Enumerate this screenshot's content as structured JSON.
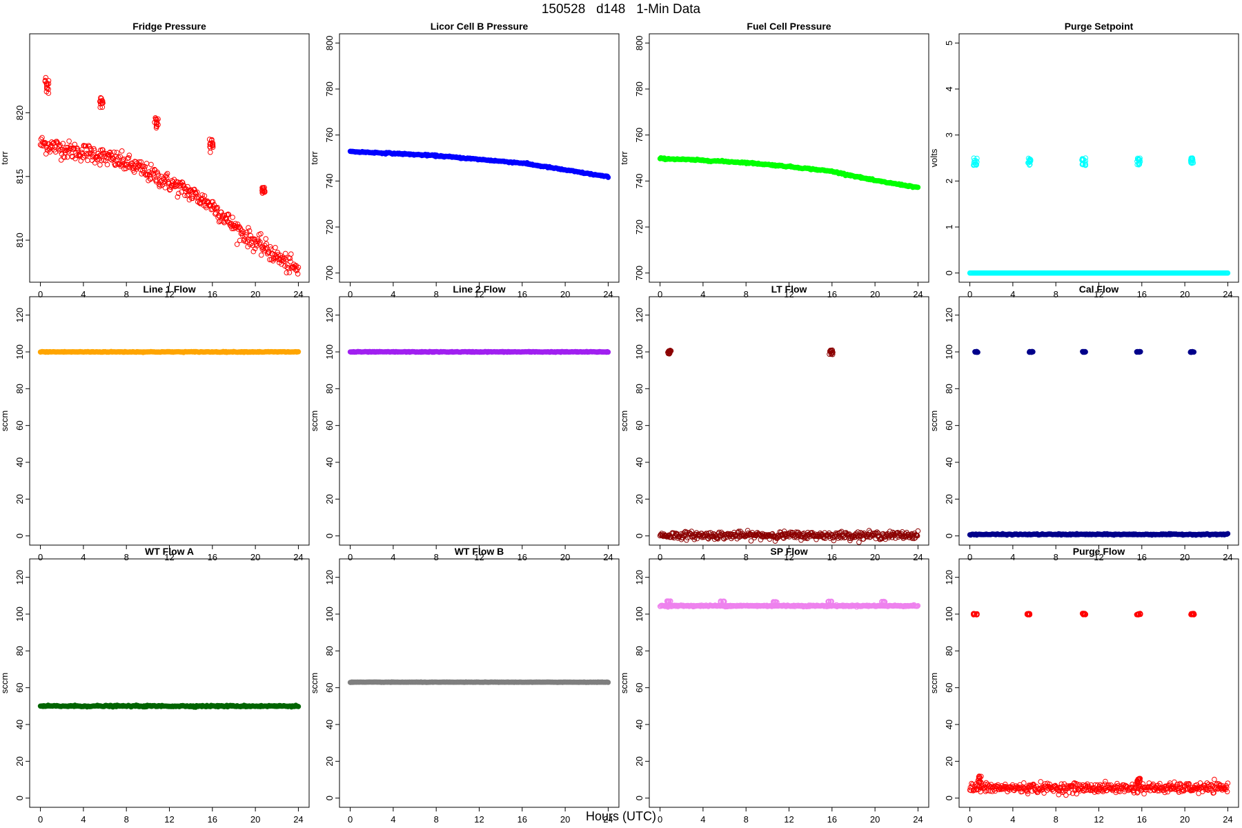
{
  "title": "150528   d148   1-Min Data",
  "xlabel": "Hours (UTC)",
  "chart_data": [
    {
      "type": "scatter",
      "title": "Fridge Pressure",
      "ylabel": "torr",
      "color": "#ff0000",
      "fill": false,
      "xlim": [
        -1,
        25
      ],
      "ylim": [
        806.7,
        826.2
      ],
      "xticks": [
        0,
        4,
        8,
        12,
        16,
        20,
        24
      ],
      "yticks": [
        810,
        815,
        820
      ],
      "series": [
        {
          "name": "",
          "mode": "trend",
          "x": [
            0,
            1,
            2,
            3,
            4,
            5,
            6,
            7,
            8,
            9,
            10,
            11,
            12,
            13,
            14,
            15,
            16,
            17,
            18,
            19,
            20,
            21,
            22,
            23,
            24
          ],
          "y": [
            817.6,
            817.4,
            817.2,
            817.0,
            816.9,
            816.8,
            816.5,
            816.3,
            816.0,
            815.7,
            815.3,
            814.9,
            814.5,
            814.1,
            813.7,
            813.2,
            812.7,
            811.9,
            811.1,
            810.4,
            809.8,
            809.3,
            808.7,
            808.1,
            807.6
          ],
          "noise": 0.35
        },
        {
          "name": "",
          "mode": "cluster",
          "x": [
            0.6,
            5.7,
            10.8,
            15.9,
            20.8
          ],
          "y": [
            822.1,
            820.8,
            819.2,
            817.5,
            813.9
          ],
          "spread": [
            0.7,
            0.4,
            0.45,
            0.6,
            0.25
          ]
        }
      ]
    },
    {
      "type": "scatter",
      "title": "Licor Cell B Pressure",
      "ylabel": "torr",
      "color": "#0000ff",
      "fill": true,
      "xlim": [
        -1,
        25
      ],
      "ylim": [
        696,
        804
      ],
      "xticks": [
        0,
        4,
        8,
        12,
        16,
        20,
        24
      ],
      "yticks": [
        700,
        720,
        740,
        760,
        780,
        800
      ],
      "series": [
        {
          "name": "",
          "mode": "trend",
          "x": [
            0,
            4,
            8,
            12,
            16,
            20,
            24
          ],
          "y": [
            752.8,
            752.0,
            751.0,
            749.4,
            747.8,
            744.8,
            741.8
          ],
          "noise": 0.15
        }
      ]
    },
    {
      "type": "scatter",
      "title": "Fuel Cell Pressure",
      "ylabel": "torr",
      "color": "#00ff00",
      "fill": true,
      "xlim": [
        -1,
        25
      ],
      "ylim": [
        696,
        804
      ],
      "xticks": [
        0,
        4,
        8,
        12,
        16,
        20,
        24
      ],
      "yticks": [
        700,
        720,
        740,
        760,
        780,
        800
      ],
      "series": [
        {
          "name": "",
          "mode": "trend",
          "x": [
            0,
            4,
            8,
            12,
            16,
            20,
            24
          ],
          "y": [
            749.8,
            749.0,
            748.0,
            746.3,
            744.2,
            740.2,
            737.2
          ],
          "noise": 0.15
        }
      ]
    },
    {
      "type": "scatter",
      "title": "Purge Setpoint",
      "ylabel": "volts",
      "color": "#00ffff",
      "fill": false,
      "xlim": [
        -1,
        25
      ],
      "ylim": [
        -0.2,
        5.2
      ],
      "xticks": [
        0,
        4,
        8,
        12,
        16,
        20,
        24
      ],
      "yticks": [
        0,
        1,
        2,
        3,
        4,
        5
      ],
      "series": [
        {
          "name": "",
          "mode": "trend",
          "x": [
            0,
            24
          ],
          "y": [
            0,
            0
          ],
          "noise": 0.0
        },
        {
          "name": "",
          "mode": "cluster",
          "x": [
            0.5,
            5.5,
            10.6,
            15.7,
            20.7
          ],
          "y": [
            2.42,
            2.42,
            2.42,
            2.42,
            2.42
          ],
          "spread": [
            0.08,
            0.08,
            0.08,
            0.08,
            0.08
          ]
        }
      ]
    },
    {
      "type": "scatter",
      "title": "Line 1 Flow",
      "ylabel": "sccm",
      "color": "#ffa500",
      "fill": true,
      "xlim": [
        -1,
        25
      ],
      "ylim": [
        -5,
        130
      ],
      "xticks": [
        0,
        4,
        8,
        12,
        16,
        20,
        24
      ],
      "yticks": [
        0,
        20,
        40,
        60,
        80,
        100,
        120
      ],
      "series": [
        {
          "name": "",
          "mode": "trend",
          "x": [
            0,
            24
          ],
          "y": [
            100,
            100
          ],
          "noise": 0.1
        }
      ]
    },
    {
      "type": "scatter",
      "title": "Line 2 Flow",
      "ylabel": "sccm",
      "color": "#a020f0",
      "fill": true,
      "xlim": [
        -1,
        25
      ],
      "ylim": [
        -5,
        130
      ],
      "xticks": [
        0,
        4,
        8,
        12,
        16,
        20,
        24
      ],
      "yticks": [
        0,
        20,
        40,
        60,
        80,
        100,
        120
      ],
      "series": [
        {
          "name": "",
          "mode": "trend",
          "x": [
            0,
            24
          ],
          "y": [
            100,
            100
          ],
          "noise": 0.1
        }
      ]
    },
    {
      "type": "scatter",
      "title": "LT Flow",
      "ylabel": "sccm",
      "color": "#8b0000",
      "fill": false,
      "xlim": [
        -1,
        25
      ],
      "ylim": [
        -5,
        130
      ],
      "xticks": [
        0,
        4,
        8,
        12,
        16,
        20,
        24
      ],
      "yticks": [
        0,
        20,
        40,
        60,
        80,
        100,
        120
      ],
      "series": [
        {
          "name": "",
          "mode": "trend",
          "x": [
            0,
            24
          ],
          "y": [
            0.3,
            0.3
          ],
          "noise": 1.0
        },
        {
          "name": "",
          "mode": "cluster",
          "x": [
            0.9,
            15.9
          ],
          "y": [
            99.8,
            99.8
          ],
          "spread": [
            1.2,
            1.2
          ]
        }
      ]
    },
    {
      "type": "scatter",
      "title": "Cal Flow",
      "ylabel": "sccm",
      "color": "#00008b",
      "fill": true,
      "xlim": [
        -1,
        25
      ],
      "ylim": [
        -5,
        130
      ],
      "xticks": [
        0,
        4,
        8,
        12,
        16,
        20,
        24
      ],
      "yticks": [
        0,
        20,
        40,
        60,
        80,
        100,
        120
      ],
      "series": [
        {
          "name": "",
          "mode": "trend",
          "x": [
            0,
            24
          ],
          "y": [
            0.8,
            0.8
          ],
          "noise": 0.15
        },
        {
          "name": "",
          "mode": "cluster",
          "x": [
            0.6,
            5.7,
            10.6,
            15.7,
            20.7
          ],
          "y": [
            100,
            100,
            100,
            100,
            100
          ],
          "spread": [
            0.2,
            0.2,
            0.2,
            0.2,
            0.2
          ]
        }
      ]
    },
    {
      "type": "scatter",
      "title": "WT Flow A",
      "ylabel": "sccm",
      "color": "#006400",
      "fill": true,
      "xlim": [
        -1,
        25
      ],
      "ylim": [
        -5,
        130
      ],
      "xticks": [
        0,
        4,
        8,
        12,
        16,
        20,
        24
      ],
      "yticks": [
        0,
        20,
        40,
        60,
        80,
        100,
        120
      ],
      "series": [
        {
          "name": "",
          "mode": "trend",
          "x": [
            0,
            24
          ],
          "y": [
            50,
            50
          ],
          "noise": 0.2
        }
      ]
    },
    {
      "type": "scatter",
      "title": "WT Flow B",
      "ylabel": "sccm",
      "color": "#7f7f7f",
      "fill": true,
      "xlim": [
        -1,
        25
      ],
      "ylim": [
        -5,
        130
      ],
      "xticks": [
        0,
        4,
        8,
        12,
        16,
        20,
        24
      ],
      "yticks": [
        0,
        20,
        40,
        60,
        80,
        100,
        120
      ],
      "series": [
        {
          "name": "",
          "mode": "trend",
          "x": [
            0,
            24
          ],
          "y": [
            63,
            63
          ],
          "noise": 0.05
        }
      ]
    },
    {
      "type": "scatter",
      "title": "SP Flow",
      "ylabel": "sccm",
      "color": "#ee82ee",
      "fill": false,
      "xlim": [
        -1,
        25
      ],
      "ylim": [
        -5,
        130
      ],
      "xticks": [
        0,
        4,
        8,
        12,
        16,
        20,
        24
      ],
      "yticks": [
        0,
        20,
        40,
        60,
        80,
        100,
        120
      ],
      "series": [
        {
          "name": "",
          "mode": "trend",
          "x": [
            0,
            24
          ],
          "y": [
            104.5,
            104.5
          ],
          "noise": 0.2
        },
        {
          "name": "",
          "mode": "cluster",
          "x": [
            0.8,
            5.8,
            10.7,
            15.8,
            20.8
          ],
          "y": [
            106.8,
            106.8,
            106.5,
            106.8,
            106.6
          ],
          "spread": [
            0.3,
            0.3,
            0.3,
            0.3,
            0.3
          ]
        }
      ]
    },
    {
      "type": "scatter",
      "title": "Purge Flow",
      "ylabel": "sccm",
      "color": "#ff0000",
      "fill": false,
      "xlim": [
        -1,
        25
      ],
      "ylim": [
        -5,
        130
      ],
      "xticks": [
        0,
        4,
        8,
        12,
        16,
        20,
        24
      ],
      "yticks": [
        0,
        20,
        40,
        60,
        80,
        100,
        120
      ],
      "series": [
        {
          "name": "",
          "mode": "trend",
          "x": [
            0,
            24
          ],
          "y": [
            5.5,
            5.5
          ],
          "noise": 1.3
        },
        {
          "name": "",
          "mode": "cluster",
          "x": [
            0.5,
            5.5,
            10.6,
            15.7,
            20.7
          ],
          "y": [
            100,
            100,
            100,
            100,
            100
          ],
          "spread": [
            0.4,
            0.4,
            0.4,
            0.4,
            0.4
          ]
        },
        {
          "name": "",
          "mode": "cluster",
          "x": [
            0.9,
            15.7
          ],
          "y": [
            10,
            9.5
          ],
          "spread": [
            2,
            1.5
          ]
        }
      ]
    }
  ]
}
